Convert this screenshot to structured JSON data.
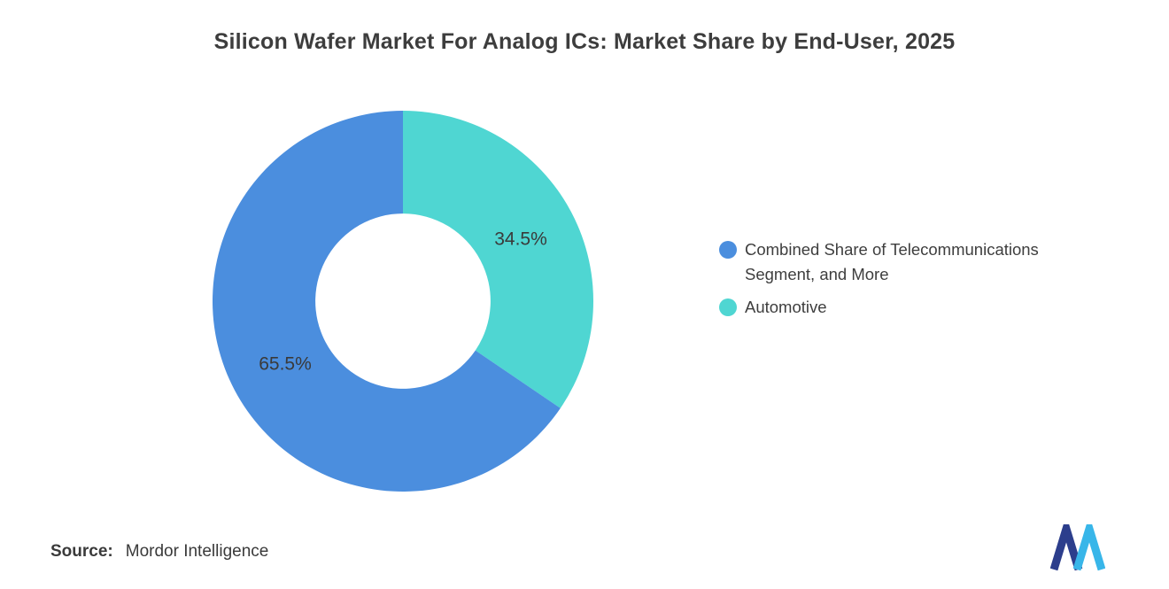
{
  "title": "Silicon Wafer Market For Analog ICs: Market Share by End-User, 2025",
  "chart_data": {
    "type": "pie",
    "subtype": "donut",
    "title": "Silicon Wafer Market For Analog ICs: Market Share by End-User, 2025",
    "unit": "%",
    "legend_position": "right",
    "inner_radius_ratio": 0.46,
    "label_color": "#3a3a3a",
    "start_angle": "12 o'clock, Automotive segment sweeps clockwise first",
    "slices": [
      {
        "label": "Combined Share of Telecommunications Segment, and More",
        "value": 65.5,
        "display_value": "65.5%",
        "color": "#4B8EDE"
      },
      {
        "label": "Automotive",
        "value": 34.5,
        "display_value": "34.5%",
        "color": "#4FD6D2"
      }
    ]
  },
  "source": {
    "label": "Source:",
    "value": "Mordor Intelligence"
  },
  "logo": {
    "name": "mordor-intelligence-logo",
    "color_dark": "#2C3E8C",
    "color_light": "#38B6E9"
  }
}
